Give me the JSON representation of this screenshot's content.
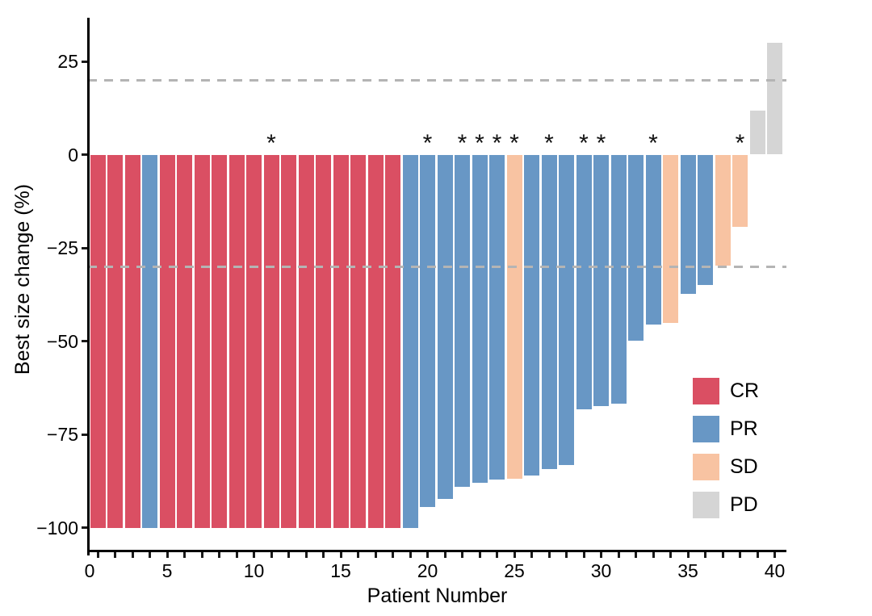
{
  "chart_data": {
    "type": "bar",
    "title": "",
    "xlabel": "Patient Number",
    "ylabel": "Best size change (%)",
    "xlim": [
      0,
      40.6
    ],
    "ylim": [
      -106.5,
      36.5
    ],
    "yticks": [
      25,
      0,
      -25,
      -50,
      -75,
      -100
    ],
    "xticks": [
      0,
      5,
      10,
      15,
      20,
      25,
      30,
      35,
      40
    ],
    "x_minor_ticks_every": 1,
    "grid": false,
    "reference_lines": [
      20,
      -30
    ],
    "reference_line_color": "#b4b4b4",
    "legend_position": "right-lower",
    "legend": [
      {
        "label": "CR",
        "color": "#da4f63"
      },
      {
        "label": "PR",
        "color": "#6897c5"
      },
      {
        "label": "SD",
        "color": "#f8c3a2"
      },
      {
        "label": "PD",
        "color": "#d5d5d5"
      }
    ],
    "annotation_symbol": "*",
    "patients": [
      {
        "n": 1,
        "value": -100,
        "response": "CR",
        "star": false
      },
      {
        "n": 2,
        "value": -100,
        "response": "CR",
        "star": false
      },
      {
        "n": 3,
        "value": -100,
        "response": "CR",
        "star": false
      },
      {
        "n": 4,
        "value": -100,
        "response": "PR",
        "star": false
      },
      {
        "n": 5,
        "value": -100,
        "response": "CR",
        "star": false
      },
      {
        "n": 6,
        "value": -100,
        "response": "CR",
        "star": false
      },
      {
        "n": 7,
        "value": -100,
        "response": "CR",
        "star": false
      },
      {
        "n": 8,
        "value": -100,
        "response": "CR",
        "star": false
      },
      {
        "n": 9,
        "value": -100,
        "response": "CR",
        "star": false
      },
      {
        "n": 10,
        "value": -100,
        "response": "CR",
        "star": false
      },
      {
        "n": 11,
        "value": -100,
        "response": "CR",
        "star": true
      },
      {
        "n": 12,
        "value": -100,
        "response": "CR",
        "star": false
      },
      {
        "n": 13,
        "value": -100,
        "response": "CR",
        "star": false
      },
      {
        "n": 14,
        "value": -100,
        "response": "CR",
        "star": false
      },
      {
        "n": 15,
        "value": -100,
        "response": "CR",
        "star": false
      },
      {
        "n": 16,
        "value": -100,
        "response": "CR",
        "star": false
      },
      {
        "n": 17,
        "value": -100,
        "response": "CR",
        "star": false
      },
      {
        "n": 18,
        "value": -100,
        "response": "CR",
        "star": false
      },
      {
        "n": 19,
        "value": -100,
        "response": "PR",
        "star": false
      },
      {
        "n": 20,
        "value": -94.5,
        "response": "PR",
        "star": true
      },
      {
        "n": 21,
        "value": -92.3,
        "response": "PR",
        "star": false
      },
      {
        "n": 22,
        "value": -89,
        "response": "PR",
        "star": true
      },
      {
        "n": 23,
        "value": -88,
        "response": "PR",
        "star": true
      },
      {
        "n": 24,
        "value": -87.2,
        "response": "PR",
        "star": true
      },
      {
        "n": 25,
        "value": -86.8,
        "response": "SD",
        "star": true
      },
      {
        "n": 26,
        "value": -86,
        "response": "PR",
        "star": false
      },
      {
        "n": 27,
        "value": -84.2,
        "response": "PR",
        "star": true
      },
      {
        "n": 28,
        "value": -83.2,
        "response": "PR",
        "star": false
      },
      {
        "n": 29,
        "value": -68.2,
        "response": "PR",
        "star": true
      },
      {
        "n": 30,
        "value": -67.4,
        "response": "PR",
        "star": true
      },
      {
        "n": 31,
        "value": -66.8,
        "response": "PR",
        "star": false
      },
      {
        "n": 32,
        "value": -49.8,
        "response": "PR",
        "star": false
      },
      {
        "n": 33,
        "value": -45.5,
        "response": "PR",
        "star": true
      },
      {
        "n": 34,
        "value": -45.2,
        "response": "SD",
        "star": false
      },
      {
        "n": 35,
        "value": -37.4,
        "response": "PR",
        "star": false
      },
      {
        "n": 36,
        "value": -35,
        "response": "PR",
        "star": false
      },
      {
        "n": 37,
        "value": -29.8,
        "response": "SD",
        "star": false
      },
      {
        "n": 38,
        "value": -19.4,
        "response": "SD",
        "star": true
      },
      {
        "n": 39,
        "value": 11.9,
        "response": "PD",
        "star": false
      },
      {
        "n": 40,
        "value": 30,
        "response": "PD",
        "star": false
      }
    ]
  }
}
